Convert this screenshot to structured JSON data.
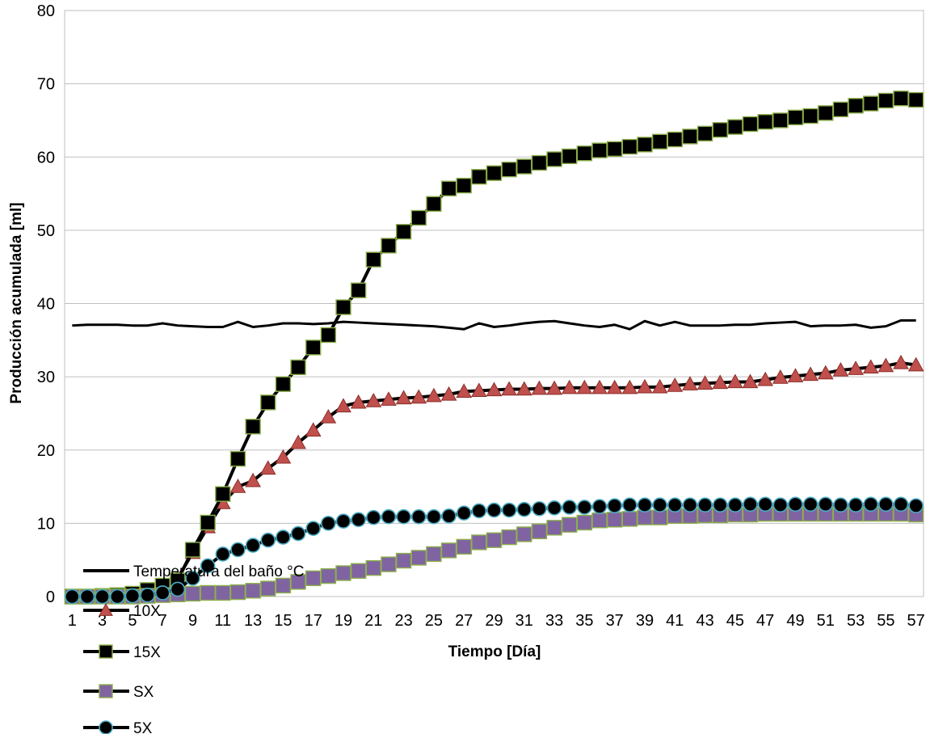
{
  "chart_data": {
    "type": "line",
    "title": "",
    "xlabel": "Tiempo [Día]",
    "ylabel": "Producción acumulada [ml]",
    "x": [
      1,
      2,
      3,
      4,
      5,
      6,
      7,
      8,
      9,
      10,
      11,
      12,
      13,
      14,
      15,
      16,
      17,
      18,
      19,
      20,
      21,
      22,
      23,
      24,
      25,
      26,
      27,
      28,
      29,
      30,
      31,
      32,
      33,
      34,
      35,
      36,
      37,
      38,
      39,
      40,
      41,
      42,
      43,
      44,
      45,
      46,
      47,
      48,
      49,
      50,
      51,
      52,
      53,
      54,
      55,
      56,
      57
    ],
    "x_tick_labels": [
      "1",
      "3",
      "5",
      "7",
      "9",
      "11",
      "13",
      "15",
      "17",
      "19",
      "21",
      "23",
      "25",
      "27",
      "29",
      "31",
      "33",
      "35",
      "37",
      "39",
      "41",
      "43",
      "45",
      "47",
      "49",
      "51",
      "53",
      "55",
      "57"
    ],
    "ylim": [
      0,
      80
    ],
    "y_ticks": [
      0,
      10,
      20,
      30,
      40,
      50,
      60,
      70,
      80
    ],
    "grid": "horizontal",
    "legend_position": "bottom-left",
    "series": [
      {
        "name": "Temperatura del baño °C",
        "color": "#000000",
        "marker": "none",
        "marker_fill": "",
        "values": [
          37.0,
          37.1,
          37.1,
          37.1,
          37.0,
          37.0,
          37.3,
          37.0,
          36.9,
          36.8,
          36.8,
          37.5,
          36.8,
          37.0,
          37.3,
          37.3,
          37.2,
          37.3,
          37.5,
          37.4,
          37.3,
          37.2,
          37.1,
          37.0,
          36.9,
          36.7,
          36.5,
          37.3,
          36.8,
          37.0,
          37.3,
          37.5,
          37.6,
          37.3,
          37.0,
          36.8,
          37.1,
          36.5,
          37.6,
          37.0,
          37.5,
          37.0,
          37.0,
          37.0,
          37.1,
          37.1,
          37.3,
          37.4,
          37.5,
          36.9,
          37.0,
          37.0,
          37.1,
          36.7,
          36.9,
          37.7,
          37.7
        ]
      },
      {
        "name": "10X",
        "color": "#000000",
        "marker": "triangle",
        "marker_fill": "#c0504d",
        "values": [
          0.0,
          0.0,
          0.0,
          0.0,
          0.2,
          0.5,
          1.0,
          2.5,
          6.0,
          9.5,
          12.8,
          15.0,
          15.8,
          17.5,
          19.0,
          21.0,
          22.7,
          24.5,
          26.0,
          26.5,
          26.7,
          26.9,
          27.1,
          27.2,
          27.4,
          27.6,
          28.0,
          28.1,
          28.2,
          28.3,
          28.3,
          28.4,
          28.4,
          28.5,
          28.5,
          28.5,
          28.5,
          28.5,
          28.6,
          28.6,
          28.8,
          29.0,
          29.1,
          29.2,
          29.3,
          29.3,
          29.6,
          29.9,
          30.1,
          30.3,
          30.5,
          30.9,
          31.1,
          31.3,
          31.5,
          31.9,
          31.6
        ]
      },
      {
        "name": "15X",
        "color": "#000000",
        "marker": "square",
        "marker_fill": "#000000",
        "values": [
          0.0,
          0.0,
          0.1,
          0.2,
          0.4,
          0.9,
          1.5,
          2.2,
          6.4,
          10.1,
          14.0,
          18.8,
          23.2,
          26.5,
          29.0,
          31.3,
          34.0,
          35.7,
          39.5,
          41.8,
          46.0,
          47.9,
          49.8,
          51.7,
          53.6,
          55.7,
          56.1,
          57.3,
          57.8,
          58.3,
          58.7,
          59.2,
          59.7,
          60.1,
          60.5,
          60.9,
          61.1,
          61.4,
          61.7,
          62.1,
          62.4,
          62.8,
          63.2,
          63.7,
          64.1,
          64.5,
          64.8,
          65.0,
          65.4,
          65.6,
          66.0,
          66.5,
          67.0,
          67.3,
          67.7,
          68.0,
          67.8
        ]
      },
      {
        "name": "SX",
        "color": "#000000",
        "marker": "square",
        "marker_fill": "#8064a2",
        "values": [
          0.0,
          0.0,
          0.0,
          0.0,
          0.0,
          0.1,
          0.2,
          0.3,
          0.4,
          0.5,
          0.5,
          0.6,
          0.8,
          1.1,
          1.5,
          2.0,
          2.5,
          2.8,
          3.2,
          3.5,
          3.9,
          4.4,
          4.9,
          5.3,
          5.8,
          6.3,
          6.8,
          7.4,
          7.7,
          8.1,
          8.5,
          8.9,
          9.4,
          9.8,
          10.1,
          10.4,
          10.5,
          10.6,
          10.8,
          10.8,
          11.0,
          11.0,
          11.1,
          11.1,
          11.2,
          11.2,
          11.3,
          11.3,
          11.3,
          11.3,
          11.3,
          11.3,
          11.3,
          11.3,
          11.3,
          11.3,
          11.2
        ]
      },
      {
        "name": "5X",
        "color": "#000000",
        "marker": "circle",
        "marker_fill": "#000000",
        "values": [
          0.0,
          0.0,
          0.0,
          0.0,
          0.1,
          0.2,
          0.5,
          1.0,
          2.5,
          4.2,
          5.8,
          6.4,
          7.0,
          7.7,
          8.1,
          8.6,
          9.3,
          10.0,
          10.3,
          10.5,
          10.8,
          10.9,
          10.9,
          10.9,
          10.9,
          11.0,
          11.4,
          11.7,
          11.8,
          11.8,
          11.9,
          12.0,
          12.1,
          12.2,
          12.2,
          12.3,
          12.4,
          12.5,
          12.5,
          12.5,
          12.5,
          12.5,
          12.5,
          12.5,
          12.5,
          12.6,
          12.6,
          12.5,
          12.6,
          12.6,
          12.6,
          12.5,
          12.5,
          12.6,
          12.6,
          12.6,
          12.4
        ]
      }
    ]
  }
}
